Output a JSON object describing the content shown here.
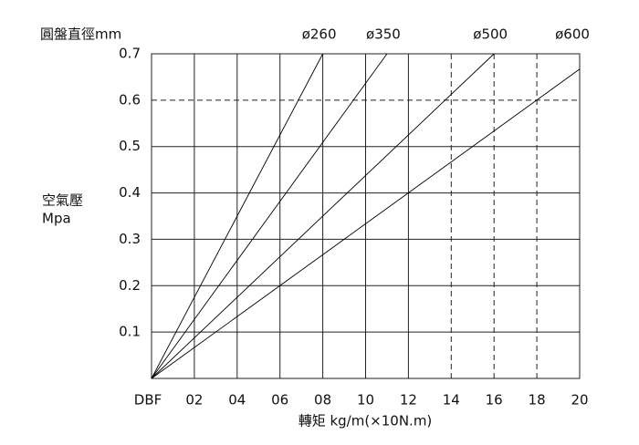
{
  "chart_data": {
    "type": "line",
    "title": "圓盤直徑mm",
    "y_label": "空氣壓",
    "y_unit": "Mpa",
    "x_label": "轉矩 kg/m(×10N.m)",
    "xlim": [
      0,
      20
    ],
    "ylim": [
      0,
      0.7
    ],
    "xticks": [
      {
        "value": 0,
        "label": "DBF"
      },
      {
        "value": 2,
        "label": "02"
      },
      {
        "value": 4,
        "label": "04"
      },
      {
        "value": 6,
        "label": "06"
      },
      {
        "value": 8,
        "label": "08"
      },
      10,
      12,
      14,
      16,
      18,
      20
    ],
    "yticks": [
      0.1,
      0.2,
      0.3,
      0.4,
      0.5,
      0.6,
      0.7
    ],
    "grid": true,
    "dashed_grid": {
      "x": [
        14,
        16,
        18
      ],
      "y": [
        0.6
      ]
    },
    "series": [
      {
        "name": "ø260",
        "color": "#000000",
        "x": [
          0,
          8
        ],
        "values": [
          0,
          0.7
        ]
      },
      {
        "name": "ø350",
        "color": "#000000",
        "x": [
          0,
          11
        ],
        "values": [
          0,
          0.7
        ]
      },
      {
        "name": "ø500",
        "color": "#000000",
        "x": [
          0,
          16
        ],
        "values": [
          0,
          0.7
        ]
      },
      {
        "name": "ø600",
        "color": "#000000",
        "x": [
          0,
          20
        ],
        "values": [
          0,
          0.667
        ]
      }
    ]
  }
}
